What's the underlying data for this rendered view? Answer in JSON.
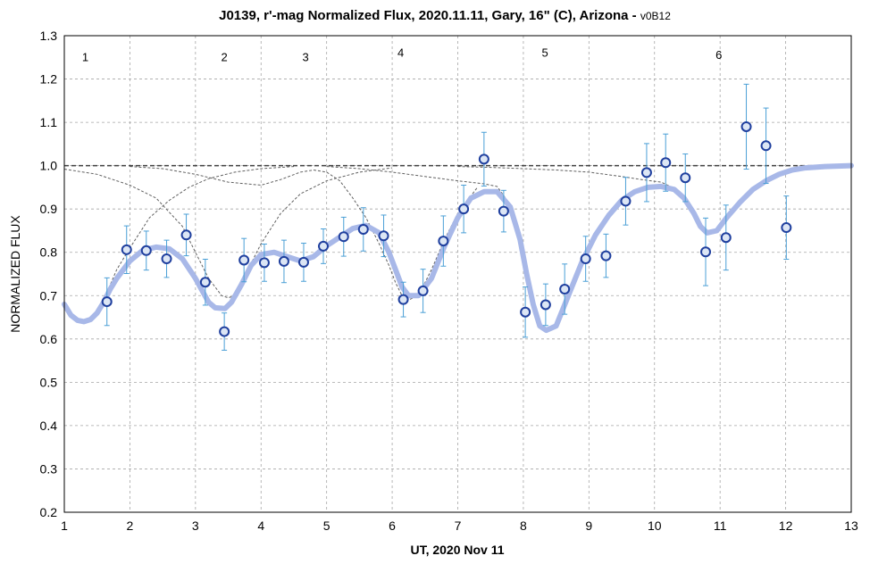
{
  "chart_data": {
    "type": "scatter",
    "title": "J0139, r'-mag Normalized Flux, 2020.11.11, Gary, 16\" (C), Arizona - ",
    "title_suffix": "v0B12",
    "xlabel": "UT, 2020 Nov 11",
    "ylabel": "NORMALIZED FLUX",
    "xlim": [
      1,
      13
    ],
    "ylim": [
      0.2,
      1.3
    ],
    "x_ticks": [
      1,
      2,
      3,
      4,
      5,
      6,
      7,
      8,
      9,
      10,
      11,
      12,
      13
    ],
    "y_ticks": [
      "0.2",
      "0.3",
      "0.4",
      "0.5",
      "0.6",
      "0.7",
      "0.8",
      "0.9",
      "1.0",
      "1.1",
      "1.2",
      "1.3"
    ],
    "grid": true,
    "annotations": [
      {
        "text": "1",
        "x": 1.32,
        "y": 1.25
      },
      {
        "text": "2",
        "x": 3.44,
        "y": 1.25
      },
      {
        "text": "3",
        "x": 4.68,
        "y": 1.25
      },
      {
        "text": "4",
        "x": 6.13,
        "y": 1.26
      },
      {
        "text": "5",
        "x": 8.33,
        "y": 1.26
      },
      {
        "text": "6",
        "x": 10.98,
        "y": 1.255
      }
    ],
    "series": [
      {
        "kind": "points",
        "color": "#1f3f9e",
        "fill": "#dce6f5",
        "errcolor": "#4a9fd6",
        "points": [
          {
            "x": 1.65,
            "y": 0.686,
            "err": 0.055
          },
          {
            "x": 1.95,
            "y": 0.806,
            "err": 0.055
          },
          {
            "x": 2.25,
            "y": 0.804,
            "err": 0.045
          },
          {
            "x": 2.56,
            "y": 0.785,
            "err": 0.043
          },
          {
            "x": 2.86,
            "y": 0.84,
            "err": 0.048
          },
          {
            "x": 3.15,
            "y": 0.731,
            "err": 0.053
          },
          {
            "x": 3.44,
            "y": 0.617,
            "err": 0.043
          },
          {
            "x": 3.74,
            "y": 0.782,
            "err": 0.05
          },
          {
            "x": 4.05,
            "y": 0.776,
            "err": 0.043
          },
          {
            "x": 4.35,
            "y": 0.779,
            "err": 0.049
          },
          {
            "x": 4.65,
            "y": 0.777,
            "err": 0.044
          },
          {
            "x": 4.95,
            "y": 0.814,
            "err": 0.04
          },
          {
            "x": 5.26,
            "y": 0.836,
            "err": 0.045
          },
          {
            "x": 5.56,
            "y": 0.853,
            "err": 0.05
          },
          {
            "x": 5.87,
            "y": 0.838,
            "err": 0.048
          },
          {
            "x": 6.17,
            "y": 0.691,
            "err": 0.04
          },
          {
            "x": 6.47,
            "y": 0.711,
            "err": 0.05
          },
          {
            "x": 6.78,
            "y": 0.826,
            "err": 0.058
          },
          {
            "x": 7.09,
            "y": 0.9,
            "err": 0.055
          },
          {
            "x": 7.4,
            "y": 1.015,
            "err": 0.062
          },
          {
            "x": 7.7,
            "y": 0.895,
            "err": 0.048
          },
          {
            "x": 8.03,
            "y": 0.662,
            "err": 0.058
          },
          {
            "x": 8.34,
            "y": 0.679,
            "err": 0.048
          },
          {
            "x": 8.63,
            "y": 0.715,
            "err": 0.058
          },
          {
            "x": 8.95,
            "y": 0.785,
            "err": 0.052
          },
          {
            "x": 9.26,
            "y": 0.792,
            "err": 0.05
          },
          {
            "x": 9.56,
            "y": 0.918,
            "err": 0.055
          },
          {
            "x": 9.88,
            "y": 0.984,
            "err": 0.067
          },
          {
            "x": 10.17,
            "y": 1.007,
            "err": 0.066
          },
          {
            "x": 10.47,
            "y": 0.972,
            "err": 0.055
          },
          {
            "x": 10.78,
            "y": 0.801,
            "err": 0.078
          },
          {
            "x": 11.09,
            "y": 0.834,
            "err": 0.075
          },
          {
            "x": 11.4,
            "y": 1.09,
            "err": 0.098
          },
          {
            "x": 11.7,
            "y": 1.046,
            "err": 0.087
          },
          {
            "x": 12.01,
            "y": 0.857,
            "err": 0.073
          }
        ]
      },
      {
        "kind": "model",
        "color": "#a8b8e8",
        "x": [
          1,
          1.1,
          1.2,
          1.3,
          1.4,
          1.5,
          1.6,
          1.7,
          1.8,
          2,
          2.2,
          2.4,
          2.6,
          2.8,
          3,
          3.1,
          3.2,
          3.3,
          3.45,
          3.55,
          3.7,
          3.85,
          4,
          4.2,
          4.4,
          4.6,
          4.8,
          5,
          5.2,
          5.4,
          5.6,
          5.8,
          5.95,
          6.05,
          6.15,
          6.25,
          6.4,
          6.6,
          6.8,
          7,
          7.2,
          7.4,
          7.6,
          7.8,
          7.95,
          8.05,
          8.15,
          8.25,
          8.35,
          8.5,
          8.7,
          8.9,
          9.1,
          9.3,
          9.5,
          9.7,
          9.9,
          10.1,
          10.3,
          10.45,
          10.6,
          10.7,
          10.8,
          10.95,
          11.1,
          11.3,
          11.5,
          11.7,
          11.9,
          12.1,
          12.3,
          12.6,
          13
        ],
        "y": [
          0.68,
          0.655,
          0.643,
          0.64,
          0.645,
          0.66,
          0.685,
          0.715,
          0.74,
          0.78,
          0.805,
          0.812,
          0.808,
          0.785,
          0.74,
          0.712,
          0.685,
          0.672,
          0.67,
          0.685,
          0.725,
          0.77,
          0.795,
          0.8,
          0.79,
          0.78,
          0.79,
          0.815,
          0.835,
          0.855,
          0.862,
          0.845,
          0.8,
          0.76,
          0.72,
          0.7,
          0.7,
          0.74,
          0.815,
          0.88,
          0.925,
          0.94,
          0.94,
          0.905,
          0.83,
          0.75,
          0.68,
          0.63,
          0.62,
          0.63,
          0.705,
          0.78,
          0.84,
          0.885,
          0.92,
          0.94,
          0.95,
          0.952,
          0.945,
          0.925,
          0.89,
          0.86,
          0.845,
          0.85,
          0.88,
          0.915,
          0.945,
          0.965,
          0.98,
          0.99,
          0.995,
          0.998,
          1.0
        ]
      },
      {
        "kind": "dashed-model",
        "color": "#606060",
        "curves": [
          {
            "x": [
              1,
              1.1,
              1.2,
              1.3,
              1.4,
              1.5,
              1.6,
              1.7,
              1.8,
              2,
              2.3,
              2.6,
              2.9,
              3.2,
              3.6,
              4,
              4.5
            ],
            "y": [
              0.68,
              0.655,
              0.643,
              0.64,
              0.645,
              0.66,
              0.69,
              0.725,
              0.76,
              0.81,
              0.88,
              0.92,
              0.95,
              0.97,
              0.985,
              0.993,
              0.998
            ]
          },
          {
            "x": [
              1,
              1.5,
              2,
              2.4,
              2.8,
              3,
              3.2,
              3.4,
              3.5,
              3.6,
              3.8,
              4,
              4.3,
              4.6,
              5,
              5.5,
              6
            ],
            "y": [
              0.992,
              0.98,
              0.955,
              0.925,
              0.86,
              0.8,
              0.74,
              0.7,
              0.695,
              0.7,
              0.76,
              0.82,
              0.89,
              0.935,
              0.965,
              0.985,
              0.995
            ]
          },
          {
            "x": [
              2,
              2.5,
              3,
              3.5,
              4,
              4.3,
              4.6,
              4.8,
              5,
              5.2,
              5.4,
              5.6,
              5.8,
              5.95,
              6.05,
              6.15,
              6.25,
              6.4,
              6.6,
              6.8,
              7,
              7.3
            ],
            "y": [
              0.998,
              0.993,
              0.98,
              0.962,
              0.955,
              0.968,
              0.985,
              0.99,
              0.985,
              0.965,
              0.925,
              0.88,
              0.82,
              0.77,
              0.73,
              0.7,
              0.69,
              0.7,
              0.76,
              0.83,
              0.89,
              0.95
            ]
          },
          {
            "x": [
              5,
              5.5,
              6,
              6.5,
              7,
              7.4,
              7.6,
              7.8,
              7.95,
              8.05,
              8.15,
              8.25,
              8.35,
              8.5,
              8.7,
              8.9,
              9.1,
              9.3,
              9.5
            ],
            "y": [
              0.998,
              0.993,
              0.985,
              0.975,
              0.965,
              0.958,
              0.952,
              0.91,
              0.835,
              0.755,
              0.685,
              0.635,
              0.625,
              0.635,
              0.71,
              0.785,
              0.845,
              0.89,
              0.925
            ]
          },
          {
            "x": [
              7,
              7.5,
              8,
              8.5,
              9,
              9.5,
              9.8,
              10.1,
              10.3,
              10.45,
              10.6,
              10.7,
              10.8,
              10.95,
              11.1,
              11.3,
              11.5,
              11.7,
              11.9,
              12.1,
              12.3,
              12.6,
              13
            ],
            "y": [
              0.998,
              0.996,
              0.993,
              0.99,
              0.985,
              0.975,
              0.968,
              0.962,
              0.948,
              0.925,
              0.89,
              0.86,
              0.845,
              0.85,
              0.88,
              0.915,
              0.945,
              0.965,
              0.98,
              0.99,
              0.995,
              0.998,
              1.0
            ]
          }
        ]
      }
    ]
  }
}
